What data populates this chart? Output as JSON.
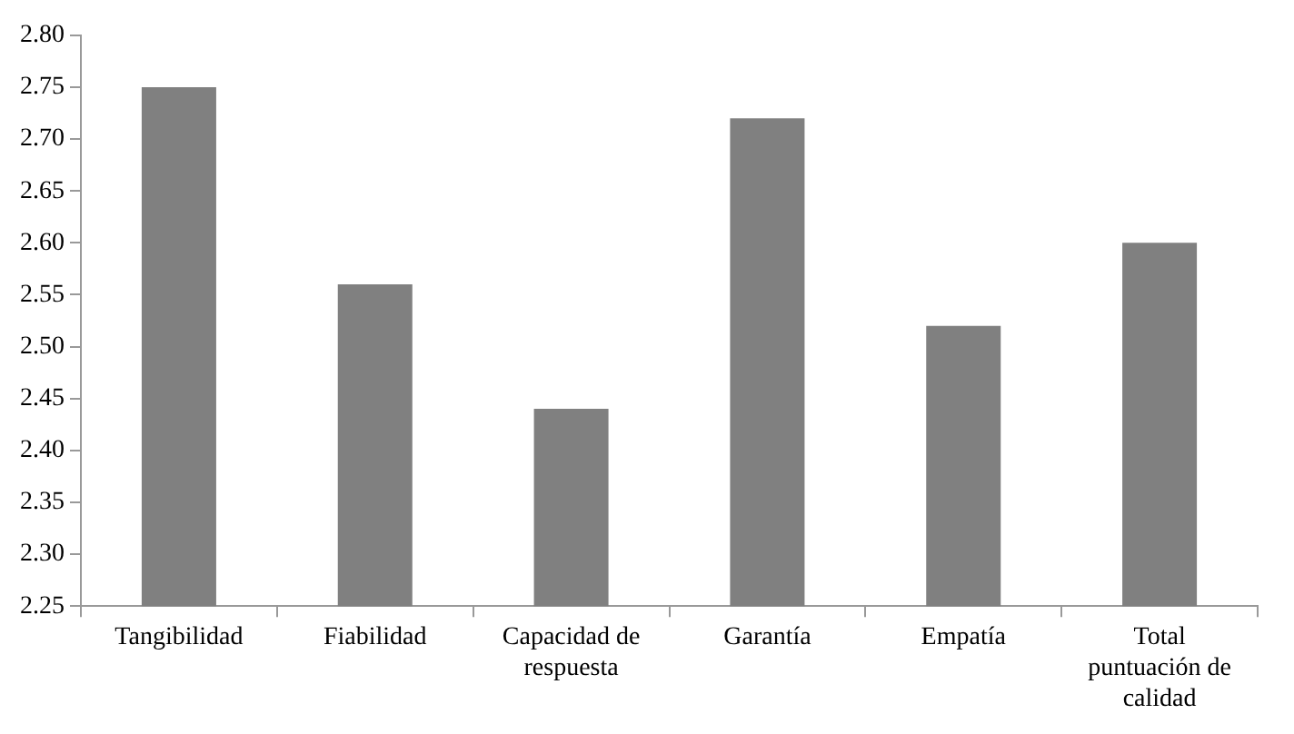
{
  "chart_data": {
    "type": "bar",
    "categories": [
      "Tangibilidad",
      "Fiabilidad",
      "Capacidad de respuesta",
      "Garantía",
      "Empatía",
      "Total puntuación de calidad"
    ],
    "values": [
      2.75,
      2.56,
      2.44,
      2.72,
      2.52,
      2.6
    ],
    "color": "#808080",
    "ylim": [
      2.25,
      2.8
    ],
    "yticks": [
      2.25,
      {
        "value": 2.3,
        "label": "2.30"
      },
      2.35,
      {
        "value": 2.4,
        "label": "2.40"
      },
      2.45,
      {
        "value": 2.5,
        "label": "2.50"
      },
      2.55,
      {
        "value": 2.6,
        "label": "2.60"
      },
      2.65,
      {
        "value": 2.7,
        "label": "2.70"
      },
      2.75,
      {
        "value": 2.8,
        "label": "2.80"
      }
    ],
    "grid": false
  }
}
